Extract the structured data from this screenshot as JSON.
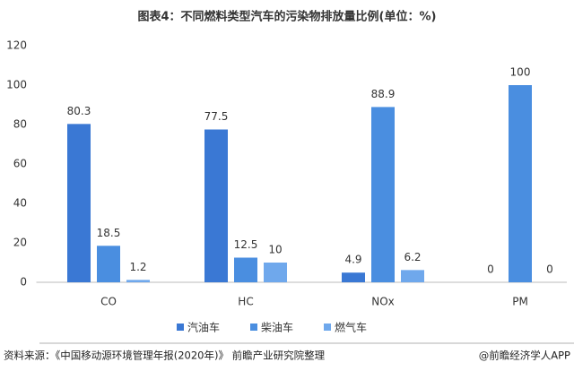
{
  "chart_data": {
    "type": "bar",
    "title": "图表4：不同燃料类型汽车的污染物排放量比例(单位：%)",
    "categories": [
      "CO",
      "HC",
      "NOx",
      "PM"
    ],
    "series": [
      {
        "name": "汽油车",
        "color": "#3a78d4",
        "values": [
          80.3,
          77.5,
          4.9,
          0
        ]
      },
      {
        "name": "柴油车",
        "color": "#4a8ee0",
        "values": [
          18.5,
          12.5,
          88.9,
          100
        ]
      },
      {
        "name": "燃气车",
        "color": "#6fa8ec",
        "values": [
          1.2,
          10,
          6.2,
          0
        ]
      }
    ],
    "ylim": [
      0,
      120
    ],
    "yticks": [
      0,
      20,
      40,
      60,
      80,
      100,
      120
    ],
    "grid": false,
    "legend": "bottom"
  },
  "footer": {
    "source": "资料来源：《中国移动源环境管理年报(2020年)》 前瞻产业研究院整理",
    "brand": "@前瞻经济学人APP"
  }
}
